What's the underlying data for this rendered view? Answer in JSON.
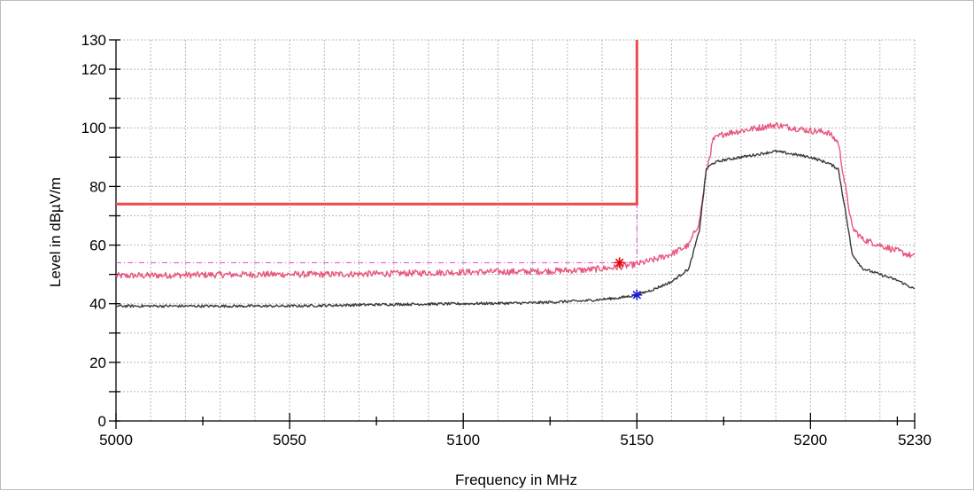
{
  "chart_data": {
    "type": "line",
    "xlabel": "Frequency in MHz",
    "ylabel": "Level in dBµV/m",
    "xlim": [
      5000,
      5230
    ],
    "ylim": [
      0,
      130
    ],
    "grid": true,
    "x_tick_labels": [
      "5000",
      "5050",
      "5100",
      "5150",
      "5200",
      "5230"
    ],
    "y_tick_labels": [
      "0",
      "20",
      "40",
      "60",
      "80",
      "100",
      "120",
      "130"
    ],
    "series": [
      {
        "color": "#e8577f",
        "points": [
          [
            5000,
            49.5
          ],
          [
            5020,
            49.8
          ],
          [
            5040,
            50
          ],
          [
            5060,
            50
          ],
          [
            5080,
            50.3
          ],
          [
            5100,
            50.8
          ],
          [
            5120,
            51
          ],
          [
            5135,
            51.5
          ],
          [
            5145,
            52.5
          ],
          [
            5150,
            53.5
          ],
          [
            5155,
            55
          ],
          [
            5160,
            57
          ],
          [
            5165,
            60
          ],
          [
            5168,
            68
          ],
          [
            5170,
            85
          ],
          [
            5172,
            96
          ],
          [
            5175,
            98
          ],
          [
            5180,
            99
          ],
          [
            5185,
            100
          ],
          [
            5190,
            101
          ],
          [
            5195,
            100
          ],
          [
            5200,
            99
          ],
          [
            5205,
            98.5
          ],
          [
            5208,
            95
          ],
          [
            5210,
            80
          ],
          [
            5212,
            66
          ],
          [
            5215,
            62
          ],
          [
            5220,
            60
          ],
          [
            5225,
            58
          ],
          [
            5230,
            56
          ]
        ]
      },
      {
        "color": "#3a3a3a",
        "points": [
          [
            5000,
            39.2
          ],
          [
            5020,
            39.2
          ],
          [
            5050,
            39.2
          ],
          [
            5080,
            39.8
          ],
          [
            5100,
            40
          ],
          [
            5120,
            40.3
          ],
          [
            5135,
            41
          ],
          [
            5145,
            42
          ],
          [
            5150,
            43
          ],
          [
            5155,
            45
          ],
          [
            5160,
            47.5
          ],
          [
            5165,
            52
          ],
          [
            5168,
            65
          ],
          [
            5170,
            86
          ],
          [
            5172,
            88
          ],
          [
            5175,
            89
          ],
          [
            5180,
            90
          ],
          [
            5185,
            91
          ],
          [
            5190,
            92
          ],
          [
            5195,
            91
          ],
          [
            5200,
            90
          ],
          [
            5205,
            88
          ],
          [
            5208,
            86
          ],
          [
            5210,
            72
          ],
          [
            5212,
            57
          ],
          [
            5215,
            52
          ],
          [
            5220,
            50
          ],
          [
            5225,
            48
          ],
          [
            5230,
            45
          ]
        ]
      }
    ],
    "limit_line": {
      "color": "#ee4a4a",
      "points": [
        [
          5000,
          74
        ],
        [
          5150,
          74
        ],
        [
          5150,
          130
        ]
      ]
    },
    "reference_line": {
      "color": "#e040e0",
      "points": [
        [
          5000,
          54
        ],
        [
          5150,
          54
        ],
        [
          5150,
          74
        ]
      ]
    },
    "markers": [
      {
        "x": 5145,
        "y": 54,
        "color": "#e00000",
        "symbol": "*"
      },
      {
        "x": 5150,
        "y": 43,
        "color": "#1c1cd8",
        "symbol": "*"
      }
    ]
  }
}
